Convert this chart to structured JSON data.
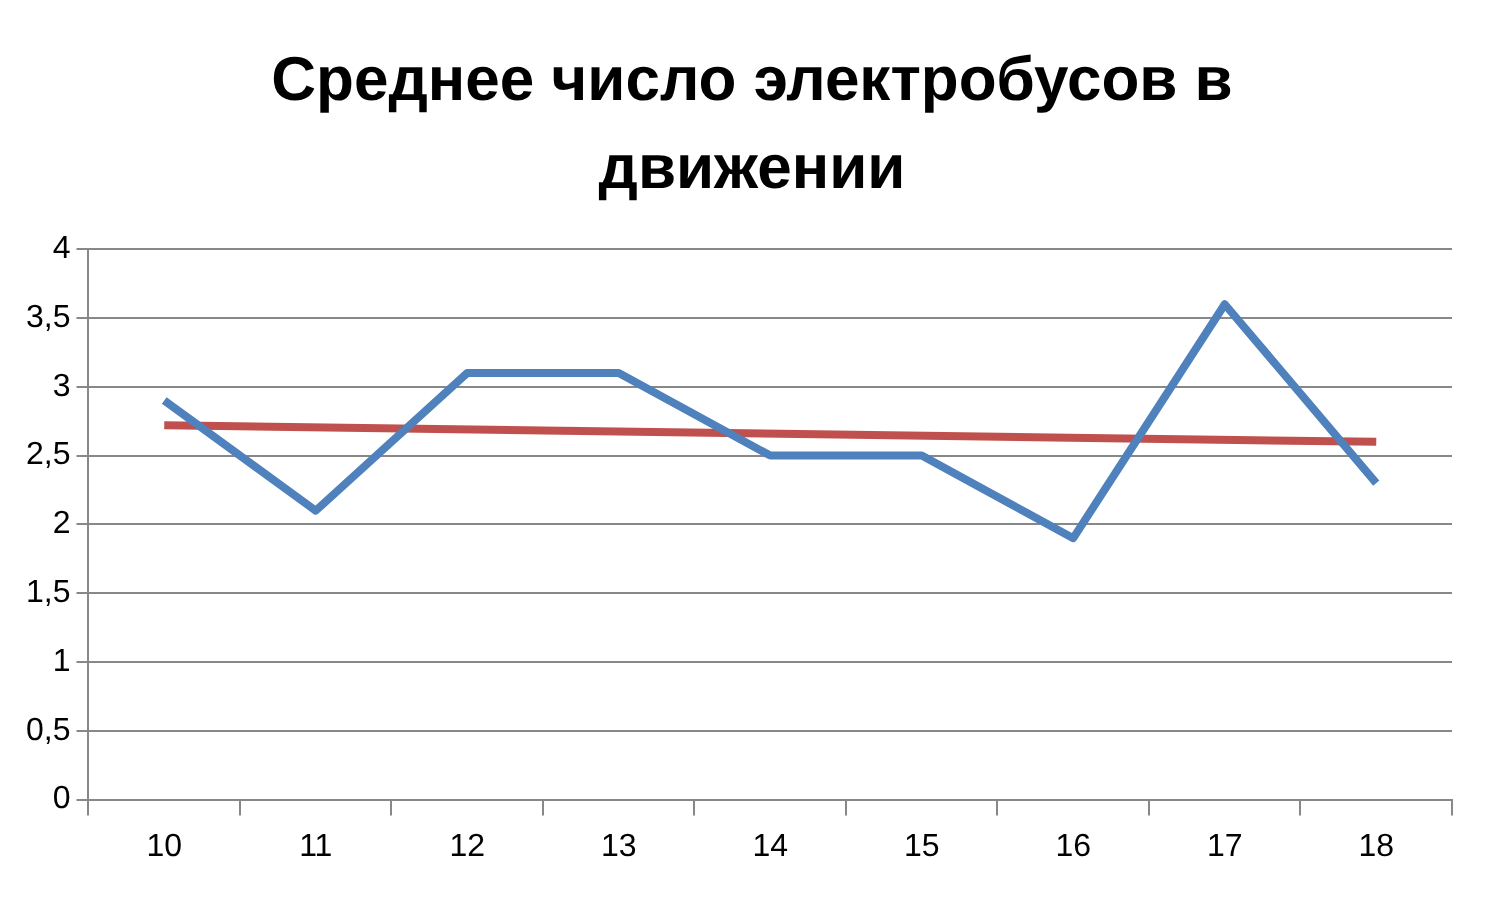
{
  "chart_data": {
    "type": "line",
    "title": "Среднее число электробусов в движении",
    "categories": [
      "10",
      "11",
      "12",
      "13",
      "14",
      "15",
      "16",
      "17",
      "18"
    ],
    "series": [
      {
        "color": "#4f81bd",
        "values": [
          2.9,
          2.1,
          3.1,
          3.1,
          2.5,
          2.5,
          1.9,
          3.6,
          2.3
        ]
      },
      {
        "type": "line",
        "color": "#c0504d",
        "x": [
          "10",
          "18"
        ],
        "values": [
          2.72,
          2.6
        ]
      }
    ],
    "ylim": [
      0,
      4
    ],
    "yticks": [
      0,
      {
        "value": 0.5,
        "label": "0,5"
      },
      1,
      {
        "value": 1.5,
        "label": "1,5"
      },
      2,
      {
        "value": 2.5,
        "label": "2,5"
      },
      3,
      {
        "value": 3.5,
        "label": "3,5"
      },
      4
    ],
    "grid": "y",
    "legend": false,
    "marker": "none",
    "line_style": "solid"
  }
}
